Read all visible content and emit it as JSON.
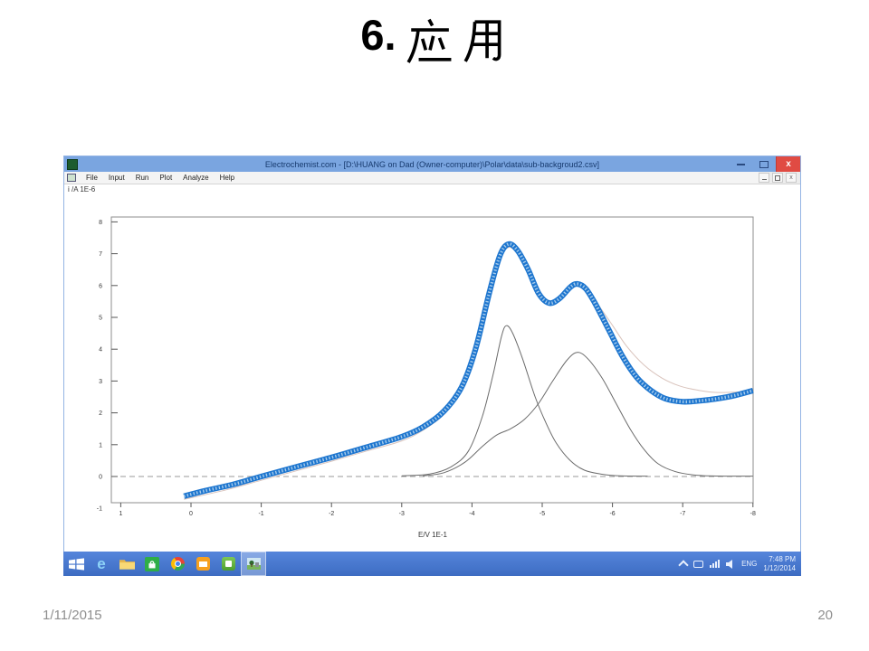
{
  "slide": {
    "title": "6. 应用",
    "title_number": "6.",
    "footer_date": "1/11/2015",
    "page_number": "20"
  },
  "window": {
    "title": "Electrochemist.com - [D:\\HUANG on Dad (Owner-computer)\\Polar\\data\\sub-backgroud2.csv]",
    "menu": {
      "items": [
        "File",
        "Input",
        "Run",
        "Plot",
        "Analyze",
        "Help"
      ]
    },
    "close_glyph": "x"
  },
  "taskbar": {
    "icons": [
      "start",
      "internet-explorer",
      "file-explorer",
      "windows-store",
      "chrome",
      "mail",
      "image-viewer",
      "electrochemist-app-active"
    ],
    "tray": {
      "language": "ENG",
      "time": "7:48 PM",
      "date": "1/12/2014"
    }
  },
  "chart_data": {
    "type": "line",
    "title": "",
    "xlabel": "E/V 1E-1",
    "ylabel": "i /A 1E-6",
    "xlim": [
      1,
      -8
    ],
    "ylim": [
      -1,
      8
    ],
    "x_ticks": [
      1,
      0,
      -1,
      -2,
      -3,
      -4,
      -5,
      -6,
      -7,
      -8
    ],
    "y_ticks": [
      8,
      7,
      6,
      5,
      4,
      3,
      2,
      1,
      0,
      -1
    ],
    "grid": false,
    "legend": false,
    "zero_line": {
      "style": "dashed",
      "value": 0
    },
    "series": [
      {
        "name": "fitted-sum-baseline",
        "color": "#d9c3bc",
        "width": 1,
        "render": "thin",
        "points": [
          [
            0.1,
            -0.72
          ],
          [
            -0.5,
            -0.42
          ],
          [
            -1.0,
            -0.12
          ],
          [
            -1.5,
            0.18
          ],
          [
            -2.0,
            0.48
          ],
          [
            -2.5,
            0.8
          ],
          [
            -3.0,
            1.12
          ],
          [
            -3.3,
            1.45
          ],
          [
            -3.6,
            1.95
          ],
          [
            -3.85,
            2.7
          ],
          [
            -4.05,
            3.9
          ],
          [
            -4.25,
            5.7
          ],
          [
            -4.4,
            6.85
          ],
          [
            -4.52,
            7.2
          ],
          [
            -4.65,
            7.0
          ],
          [
            -4.8,
            6.4
          ],
          [
            -4.95,
            5.7
          ],
          [
            -5.1,
            5.42
          ],
          [
            -5.25,
            5.58
          ],
          [
            -5.4,
            5.9
          ],
          [
            -5.5,
            5.98
          ],
          [
            -5.65,
            5.8
          ],
          [
            -5.8,
            5.38
          ],
          [
            -6.0,
            4.75
          ],
          [
            -6.2,
            4.1
          ],
          [
            -6.45,
            3.5
          ],
          [
            -6.7,
            3.1
          ],
          [
            -6.95,
            2.85
          ],
          [
            -7.2,
            2.72
          ],
          [
            -7.5,
            2.64
          ],
          [
            -8.0,
            2.68
          ]
        ]
      },
      {
        "name": "fit-component-peak-1",
        "color": "#6b6b6b",
        "width": 1,
        "render": "thin",
        "points": [
          [
            -3.0,
            0.02
          ],
          [
            -3.4,
            0.08
          ],
          [
            -3.7,
            0.3
          ],
          [
            -3.95,
            0.8
          ],
          [
            -4.15,
            1.9
          ],
          [
            -4.3,
            3.2
          ],
          [
            -4.42,
            4.4
          ],
          [
            -4.49,
            4.74
          ],
          [
            -4.58,
            4.5
          ],
          [
            -4.72,
            3.7
          ],
          [
            -4.9,
            2.5
          ],
          [
            -5.05,
            1.7
          ],
          [
            -5.2,
            1.05
          ],
          [
            -5.4,
            0.5
          ],
          [
            -5.6,
            0.2
          ],
          [
            -5.85,
            0.07
          ],
          [
            -6.1,
            0.02
          ],
          [
            -6.5,
            0.01
          ]
        ]
      },
      {
        "name": "fit-component-peak-2",
        "color": "#6b6b6b",
        "width": 1,
        "render": "thin",
        "points": [
          [
            -3.3,
            0.02
          ],
          [
            -3.6,
            0.12
          ],
          [
            -3.9,
            0.45
          ],
          [
            -4.15,
            0.95
          ],
          [
            -4.35,
            1.3
          ],
          [
            -4.55,
            1.5
          ],
          [
            -4.75,
            1.8
          ],
          [
            -4.95,
            2.3
          ],
          [
            -5.15,
            3.0
          ],
          [
            -5.35,
            3.65
          ],
          [
            -5.5,
            3.9
          ],
          [
            -5.65,
            3.7
          ],
          [
            -5.85,
            3.1
          ],
          [
            -6.05,
            2.3
          ],
          [
            -6.25,
            1.5
          ],
          [
            -6.45,
            0.85
          ],
          [
            -6.65,
            0.4
          ],
          [
            -6.9,
            0.15
          ],
          [
            -7.2,
            0.04
          ],
          [
            -7.6,
            0.01
          ],
          [
            -8.0,
            0.01
          ]
        ]
      },
      {
        "name": "measured-voltammogram",
        "color": "#1e76cf",
        "inner_color": "#a6cbeb",
        "width": 6.2,
        "render": "thick-marker",
        "points": [
          [
            0.1,
            -0.62
          ],
          [
            -0.2,
            -0.45
          ],
          [
            -0.6,
            -0.25
          ],
          [
            -1.0,
            0.0
          ],
          [
            -1.5,
            0.3
          ],
          [
            -2.0,
            0.6
          ],
          [
            -2.5,
            0.92
          ],
          [
            -3.0,
            1.25
          ],
          [
            -3.3,
            1.55
          ],
          [
            -3.6,
            2.05
          ],
          [
            -3.85,
            2.8
          ],
          [
            -4.05,
            4.0
          ],
          [
            -4.25,
            5.8
          ],
          [
            -4.4,
            6.95
          ],
          [
            -4.52,
            7.3
          ],
          [
            -4.65,
            7.1
          ],
          [
            -4.8,
            6.5
          ],
          [
            -4.95,
            5.75
          ],
          [
            -5.1,
            5.45
          ],
          [
            -5.25,
            5.6
          ],
          [
            -5.4,
            5.95
          ],
          [
            -5.5,
            6.05
          ],
          [
            -5.62,
            5.9
          ],
          [
            -5.75,
            5.45
          ],
          [
            -5.95,
            4.6
          ],
          [
            -6.15,
            3.75
          ],
          [
            -6.35,
            3.1
          ],
          [
            -6.55,
            2.7
          ],
          [
            -6.75,
            2.45
          ],
          [
            -7.0,
            2.35
          ],
          [
            -7.25,
            2.38
          ],
          [
            -7.5,
            2.45
          ],
          [
            -7.75,
            2.55
          ],
          [
            -8.0,
            2.7
          ]
        ]
      }
    ]
  }
}
